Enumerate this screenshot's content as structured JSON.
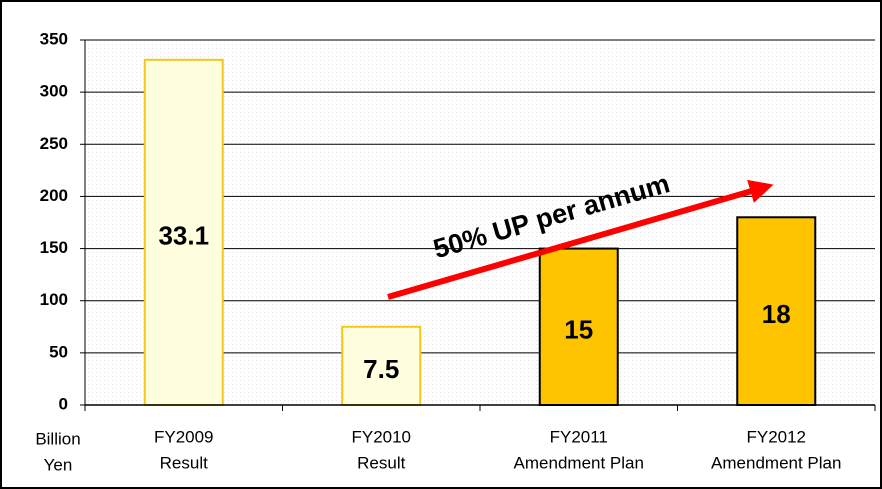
{
  "chart_data": {
    "type": "bar",
    "categories": [
      [
        "FY2009",
        "Result"
      ],
      [
        "FY2010",
        "Result"
      ],
      [
        "FY2011",
        "Amendment Plan"
      ],
      [
        "FY2012",
        "Amendment Plan"
      ]
    ],
    "values": [
      331,
      75,
      150,
      180
    ],
    "value_labels": [
      "33.1",
      "7.5",
      "15",
      "18"
    ],
    "colors": [
      "#ffffe0",
      "#ffffe0",
      "#ffc400",
      "#ffc400"
    ],
    "stroke_colors": [
      "#f5c518",
      "#f5c518",
      "#000000",
      "#000000"
    ],
    "ylim": [
      0,
      350
    ],
    "yticks": [
      0,
      50,
      100,
      150,
      200,
      250,
      300,
      350
    ],
    "y_label": [
      "Billion",
      "Yen"
    ],
    "annotation": "50% UP per annum",
    "grid": true
  }
}
